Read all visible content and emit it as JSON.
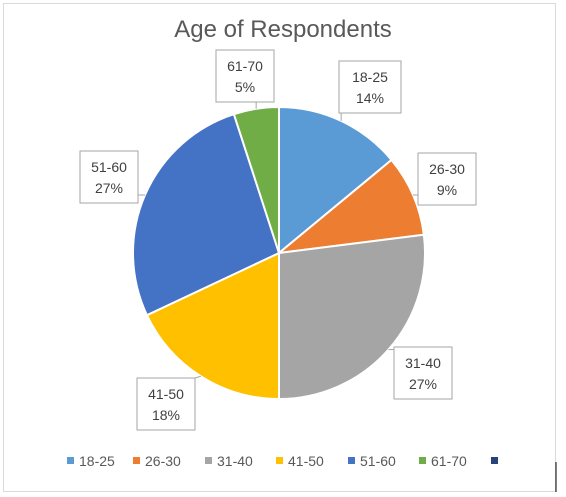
{
  "chart_data": {
    "type": "pie",
    "title": "Age of Respondents",
    "categories": [
      "18-25",
      "26-30",
      "31-40",
      "41-50",
      "51-60",
      "61-70",
      ""
    ],
    "values": [
      14,
      9,
      27,
      18,
      27,
      5,
      0
    ],
    "value_labels": [
      "14%",
      "9%",
      "27%",
      "18%",
      "27%",
      "5%",
      ""
    ],
    "colors": [
      "#5b9bd5",
      "#ed7d31",
      "#a5a5a5",
      "#ffc000",
      "#4472c4",
      "#70ad47",
      "#264478"
    ],
    "legend_position": "bottom",
    "data_labels": "callout boxes with category name and percentage"
  }
}
